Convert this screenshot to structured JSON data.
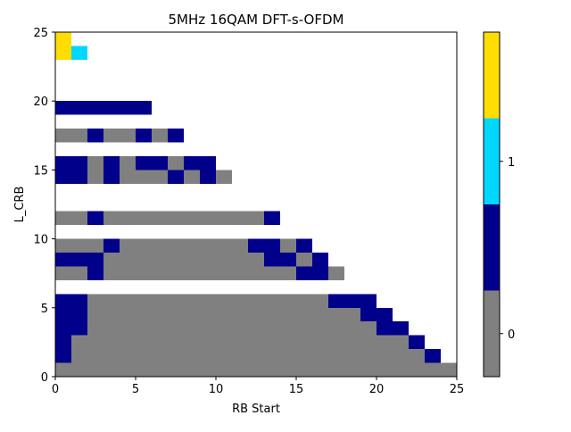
{
  "chart_data": {
    "type": "heatmap",
    "title": "5MHz 16QAM DFT-s-OFDM",
    "xlabel": "RB Start",
    "ylabel": "L_CRB",
    "xlim": [
      0,
      25
    ],
    "ylim": [
      0,
      25
    ],
    "xticks": [
      "0",
      "5",
      "10",
      "15",
      "20",
      "25"
    ],
    "yticks": [
      "0",
      "5",
      "10",
      "15",
      "20",
      "25"
    ],
    "legend": "colorbar-right",
    "colorbar": {
      "ticks": [
        "0",
        "1"
      ],
      "levels": [
        {
          "color": "#808080",
          "tick": "0"
        },
        {
          "color": "#00008b",
          "tick": ""
        },
        {
          "color": "#00d7ff",
          "tick": "1"
        },
        {
          "color": "#ffdd00",
          "tick": ""
        }
      ]
    },
    "grid": false,
    "legend_levels_note": "0 = gray, 1 = navy, 2 = cyan, 3 = yellow",
    "rows": [
      {
        "y": 0,
        "segments": [
          [
            0,
            25,
            0
          ]
        ]
      },
      {
        "y": 1,
        "segments": [
          [
            0,
            1,
            1
          ],
          [
            1,
            23,
            0
          ],
          [
            23,
            24,
            1
          ]
        ]
      },
      {
        "y": 2,
        "segments": [
          [
            0,
            1,
            1
          ],
          [
            1,
            22,
            0
          ],
          [
            22,
            23,
            1
          ]
        ]
      },
      {
        "y": 3,
        "segments": [
          [
            0,
            2,
            1
          ],
          [
            2,
            20,
            0
          ],
          [
            20,
            22,
            1
          ]
        ]
      },
      {
        "y": 4,
        "segments": [
          [
            0,
            2,
            1
          ],
          [
            2,
            19,
            0
          ],
          [
            19,
            21,
            1
          ]
        ]
      },
      {
        "y": 5,
        "segments": [
          [
            0,
            2,
            1
          ],
          [
            2,
            17,
            0
          ],
          [
            17,
            20,
            1
          ]
        ]
      },
      {
        "y": 7,
        "segments": [
          [
            0,
            2,
            0
          ],
          [
            2,
            3,
            1
          ],
          [
            3,
            15,
            0
          ],
          [
            15,
            17,
            1
          ],
          [
            17,
            18,
            0
          ]
        ]
      },
      {
        "y": 8,
        "segments": [
          [
            0,
            3,
            1
          ],
          [
            3,
            13,
            0
          ],
          [
            13,
            15,
            1
          ],
          [
            15,
            16,
            0
          ],
          [
            16,
            17,
            1
          ]
        ]
      },
      {
        "y": 9,
        "segments": [
          [
            0,
            3,
            0
          ],
          [
            3,
            4,
            1
          ],
          [
            4,
            12,
            0
          ],
          [
            12,
            14,
            1
          ],
          [
            14,
            15,
            0
          ],
          [
            15,
            16,
            1
          ]
        ]
      },
      {
        "y": 11,
        "segments": [
          [
            0,
            2,
            0
          ],
          [
            2,
            3,
            1
          ],
          [
            3,
            13,
            0
          ],
          [
            13,
            14,
            1
          ]
        ]
      },
      {
        "y": 14,
        "segments": [
          [
            0,
            2,
            1
          ],
          [
            2,
            3,
            0
          ],
          [
            3,
            4,
            1
          ],
          [
            4,
            7,
            0
          ],
          [
            7,
            8,
            1
          ],
          [
            8,
            9,
            0
          ],
          [
            9,
            10,
            1
          ],
          [
            10,
            11,
            0
          ]
        ]
      },
      {
        "y": 15,
        "segments": [
          [
            0,
            2,
            1
          ],
          [
            2,
            3,
            0
          ],
          [
            3,
            4,
            1
          ],
          [
            4,
            5,
            0
          ],
          [
            5,
            7,
            1
          ],
          [
            7,
            8,
            0
          ],
          [
            8,
            10,
            1
          ]
        ]
      },
      {
        "y": 17,
        "segments": [
          [
            0,
            2,
            0
          ],
          [
            2,
            3,
            1
          ],
          [
            3,
            5,
            0
          ],
          [
            5,
            6,
            1
          ],
          [
            6,
            7,
            0
          ],
          [
            7,
            8,
            1
          ]
        ]
      },
      {
        "y": 19,
        "segments": [
          [
            0,
            6,
            1
          ]
        ]
      },
      {
        "y": 23,
        "segments": [
          [
            0,
            1,
            3
          ],
          [
            1,
            2,
            2
          ]
        ]
      },
      {
        "y": 24,
        "segments": [
          [
            0,
            1,
            3
          ]
        ]
      }
    ]
  }
}
